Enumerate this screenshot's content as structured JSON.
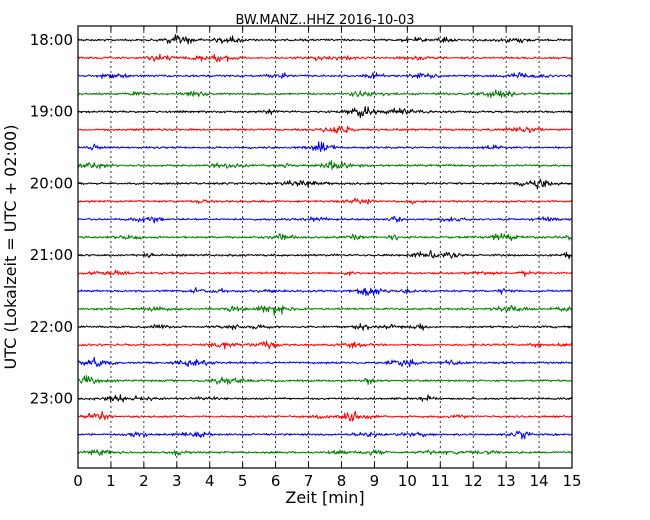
{
  "chart_data": {
    "type": "line",
    "title": "BW.MANZ..HHZ 2016-10-03",
    "xlabel": "Zeit  [min]",
    "ylabel": "UTC (Lokalzeit = UTC + 02:00)",
    "xlim": [
      0,
      15
    ],
    "x_ticks": [
      "0",
      "1",
      "2",
      "3",
      "4",
      "5",
      "6",
      "7",
      "8",
      "9",
      "10",
      "11",
      "12",
      "13",
      "14",
      "15"
    ],
    "y_tick_labels": [
      "18:00",
      "19:00",
      "20:00",
      "21:00",
      "22:00",
      "23:00"
    ],
    "grid": "vertical dotted lines at each minute",
    "trace_colors": [
      "#000000",
      "#ff0000",
      "#0000ff",
      "#008000"
    ],
    "series": [
      {
        "start": "18:00",
        "color": "#000000"
      },
      {
        "start": "18:15",
        "color": "#ff0000"
      },
      {
        "start": "18:30",
        "color": "#0000ff"
      },
      {
        "start": "18:45",
        "color": "#008000"
      },
      {
        "start": "19:00",
        "color": "#000000"
      },
      {
        "start": "19:15",
        "color": "#ff0000"
      },
      {
        "start": "19:30",
        "color": "#0000ff"
      },
      {
        "start": "19:45",
        "color": "#008000"
      },
      {
        "start": "20:00",
        "color": "#000000"
      },
      {
        "start": "20:15",
        "color": "#ff0000"
      },
      {
        "start": "20:30",
        "color": "#0000ff"
      },
      {
        "start": "20:45",
        "color": "#008000"
      },
      {
        "start": "21:00",
        "color": "#000000"
      },
      {
        "start": "21:15",
        "color": "#ff0000"
      },
      {
        "start": "21:30",
        "color": "#0000ff"
      },
      {
        "start": "21:45",
        "color": "#008000"
      },
      {
        "start": "22:00",
        "color": "#000000"
      },
      {
        "start": "22:15",
        "color": "#ff0000"
      },
      {
        "start": "22:30",
        "color": "#0000ff"
      },
      {
        "start": "22:45",
        "color": "#008000"
      },
      {
        "start": "23:00",
        "color": "#000000"
      },
      {
        "start": "23:15",
        "color": "#ff0000"
      },
      {
        "start": "23:30",
        "color": "#0000ff"
      },
      {
        "start": "23:45",
        "color": "#008000"
      }
    ]
  }
}
